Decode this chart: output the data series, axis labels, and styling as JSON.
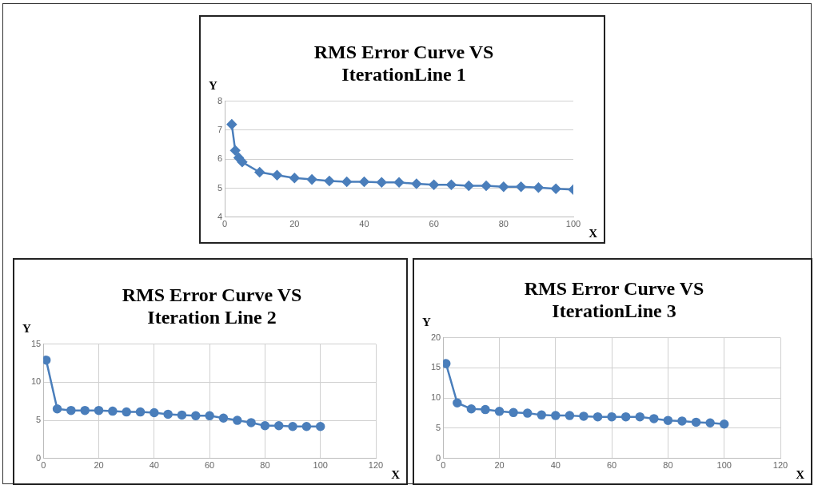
{
  "chart_data": [
    {
      "type": "line",
      "title": "RMS Error Curve VS IterationLine 1",
      "xlabel": "X",
      "ylabel": "Y",
      "x": [
        2,
        3,
        4,
        5,
        10,
        15,
        20,
        25,
        30,
        35,
        40,
        45,
        50,
        55,
        60,
        65,
        70,
        75,
        80,
        85,
        90,
        95,
        100
      ],
      "series": [
        {
          "color": "#4a7ebb",
          "values": [
            7.2,
            6.3,
            6.05,
            5.9,
            5.55,
            5.45,
            5.35,
            5.3,
            5.25,
            5.22,
            5.22,
            5.2,
            5.2,
            5.15,
            5.12,
            5.12,
            5.08,
            5.08,
            5.05,
            5.05,
            5.02,
            4.98,
            4.95
          ]
        }
      ],
      "xlim": [
        0,
        100
      ],
      "xticks": [
        0,
        20,
        40,
        60,
        80,
        100
      ],
      "ylim": [
        4,
        8
      ],
      "yticks": [
        4,
        5,
        6,
        7,
        8
      ],
      "grid": "y",
      "legend": false,
      "marker": "diamond",
      "line_style": "solid"
    },
    {
      "type": "line",
      "title": "RMS Error Curve VS Iteration Line 2",
      "xlabel": "X",
      "ylabel": "Y",
      "x": [
        1,
        5,
        10,
        15,
        20,
        25,
        30,
        35,
        40,
        45,
        50,
        55,
        60,
        65,
        70,
        75,
        80,
        85,
        90,
        95,
        100
      ],
      "series": [
        {
          "color": "#4a7ebb",
          "values": [
            12.9,
            6.5,
            6.3,
            6.3,
            6.3,
            6.2,
            6.1,
            6.1,
            6.0,
            5.8,
            5.7,
            5.6,
            5.6,
            5.3,
            5.0,
            4.7,
            4.3,
            4.3,
            4.2,
            4.2,
            4.2
          ]
        }
      ],
      "xlim": [
        0,
        120
      ],
      "xticks": [
        0,
        20,
        40,
        60,
        80,
        100,
        120
      ],
      "ylim": [
        0,
        15
      ],
      "yticks": [
        0,
        5,
        10,
        15
      ],
      "grid": true,
      "legend": false,
      "marker": "circle",
      "line_style": "solid"
    },
    {
      "type": "line",
      "title": "RMS Error Curve VS IterationLine 3",
      "xlabel": "X",
      "ylabel": "Y",
      "x": [
        1,
        5,
        10,
        15,
        20,
        25,
        30,
        35,
        40,
        45,
        50,
        55,
        60,
        65,
        70,
        75,
        80,
        85,
        90,
        95,
        100
      ],
      "series": [
        {
          "color": "#4a7ebb",
          "values": [
            15.7,
            9.2,
            8.2,
            8.1,
            7.8,
            7.6,
            7.5,
            7.2,
            7.1,
            7.1,
            7.0,
            6.9,
            6.9,
            6.9,
            6.9,
            6.6,
            6.3,
            6.2,
            6.0,
            5.9,
            5.7
          ]
        }
      ],
      "xlim": [
        0,
        120
      ],
      "xticks": [
        0,
        20,
        40,
        60,
        80,
        100,
        120
      ],
      "ylim": [
        0,
        20
      ],
      "yticks": [
        0,
        5,
        10,
        15,
        20
      ],
      "grid": true,
      "legend": false,
      "marker": "circle",
      "line_style": "solid"
    }
  ]
}
